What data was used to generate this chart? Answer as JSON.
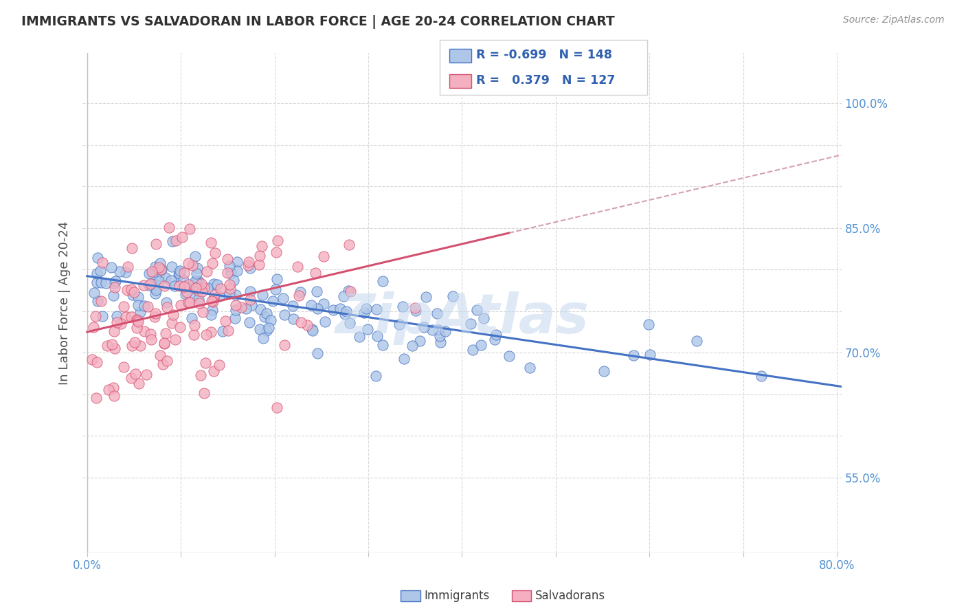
{
  "title": "IMMIGRANTS VS SALVADORAN IN LABOR FORCE | AGE 20-24 CORRELATION CHART",
  "source": "Source: ZipAtlas.com",
  "ylabel": "In Labor Force | Age 20-24",
  "blue_R": -0.699,
  "blue_N": 148,
  "pink_R": 0.379,
  "pink_N": 127,
  "blue_color": "#aec6e8",
  "pink_color": "#f4afc0",
  "blue_line_color": "#4472c4",
  "pink_line_color": "#d45070",
  "dashed_line_color": "#d4a0b0",
  "watermark": "ZipAtlas",
  "background_color": "#ffffff",
  "grid_color": "#d8d8d8",
  "title_color": "#303030",
  "axis_color": "#5090d0",
  "legend_color": "#3060b0",
  "blue_intercept": 0.79,
  "blue_slope": -0.155,
  "pink_intercept": 0.72,
  "pink_slope": 0.3,
  "x_min": 0.0,
  "x_max": 0.8,
  "y_min": 0.46,
  "y_max": 1.06
}
